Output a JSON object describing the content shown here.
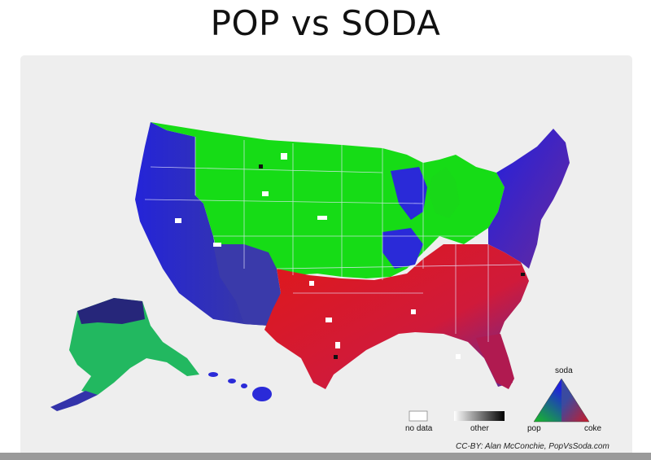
{
  "title": "POP vs SODA",
  "colors": {
    "pop": "#12e012",
    "soda": "#1a1ae6",
    "coke": "#e61212",
    "other": "#000000",
    "no_data": "#ffffff"
  },
  "legend": {
    "no_data": "no data",
    "other": "other",
    "pop": "pop",
    "soda": "soda",
    "coke": "coke"
  },
  "credit": "CC-BY: Alan McConchie, PopVsSoda.com"
}
